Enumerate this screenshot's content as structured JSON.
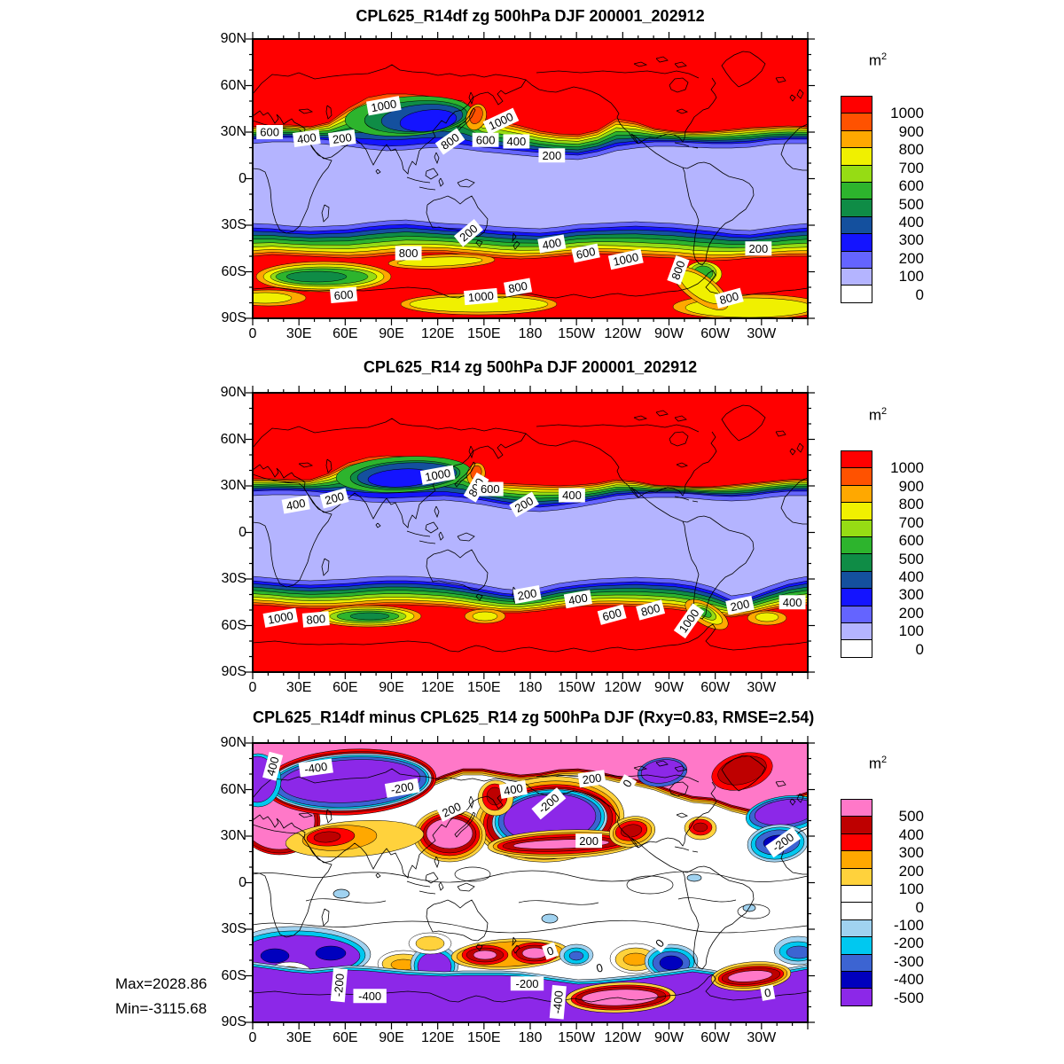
{
  "figure": {
    "background": "#ffffff"
  },
  "axes": {
    "x_tick_labels": [
      "0",
      "30E",
      "60E",
      "90E",
      "120E",
      "150E",
      "180",
      "150W",
      "120W",
      "90W",
      "60W",
      "30W"
    ],
    "y_tick_labels": [
      "90N",
      "60N",
      "30N",
      "0",
      "30S",
      "60S",
      "90S"
    ],
    "major_step_deg": 30,
    "minor_step_deg": 10
  },
  "panels": [
    {
      "title": "CPL625_R14df zg 500hPa DJF 200001_202912",
      "unit": "m",
      "unit_exp": "2",
      "colorbar": {
        "tick_labels": [
          "1000",
          "900",
          "800",
          "700",
          "600",
          "500",
          "400",
          "300",
          "200",
          "100",
          "0"
        ],
        "colors": [
          "#ff0000",
          "#ff5200",
          "#ffa800",
          "#f0f000",
          "#96dc14",
          "#2db42d",
          "#0f8c46",
          "#14509e",
          "#1414ff",
          "#6464ff",
          "#b4b4ff",
          "#ffffff"
        ]
      }
    },
    {
      "title": "CPL625_R14 zg 500hPa DJF 200001_202912",
      "unit": "m",
      "unit_exp": "2",
      "colorbar": {
        "tick_labels": [
          "1000",
          "900",
          "800",
          "700",
          "600",
          "500",
          "400",
          "300",
          "200",
          "100",
          "0"
        ],
        "colors": [
          "#ff0000",
          "#ff5200",
          "#ffa800",
          "#f0f000",
          "#96dc14",
          "#2db42d",
          "#0f8c46",
          "#14509e",
          "#1414ff",
          "#6464ff",
          "#b4b4ff",
          "#ffffff"
        ]
      }
    },
    {
      "title": "CPL625_R14df minus CPL625_R14 zg 500hPa DJF (Rxy=0.83, RMSE=2.54)",
      "unit": "m",
      "unit_exp": "2",
      "colorbar": {
        "tick_labels": [
          "500",
          "400",
          "300",
          "200",
          "100",
          "0",
          "-100",
          "-200",
          "-300",
          "-400",
          "-500"
        ],
        "colors": [
          "#ff78c8",
          "#be0000",
          "#ff0000",
          "#ffa800",
          "#ffd23c",
          "#ffffff",
          "#ffffff",
          "#a0d2f0",
          "#00c8f0",
          "#3c64d2",
          "#0000be",
          "#8c28e8"
        ]
      },
      "stats": {
        "max_label": "Max=2028.86",
        "min_label": "Min=-3115.68"
      }
    }
  ],
  "chart_data": [
    {
      "type": "filled_contour_map",
      "title": "CPL625_R14df zg 500hPa DJF 200001_202912",
      "units": "m²",
      "projection": "equirectangular",
      "lon_range": [
        0,
        360
      ],
      "lat_range": [
        -90,
        90
      ],
      "contour_interval": 100,
      "levels": [
        0,
        100,
        200,
        300,
        400,
        500,
        600,
        700,
        800,
        900,
        1000
      ],
      "field_summary": "High variance (>1000 m²) poleward of ~35N and ~50S; low variance (<200 m²) band across the tropics; minimum blue core over central Asia 100-130E near 40N; secondary green minima in the Southern Ocean near 30-70E around 60S.",
      "labeled_contours": [
        {
          "value": 1000,
          "lon": 85,
          "lat": 47,
          "rot": -10
        },
        {
          "value": 1000,
          "lon": 161,
          "lat": 37,
          "rot": -25
        },
        {
          "value": 800,
          "lon": 128,
          "lat": 24,
          "rot": -35
        },
        {
          "value": 600,
          "lon": 11,
          "lat": 30,
          "rot": 0
        },
        {
          "value": 400,
          "lon": 35,
          "lat": 26,
          "rot": -8
        },
        {
          "value": 200,
          "lon": 58,
          "lat": 26,
          "rot": -8
        },
        {
          "value": 600,
          "lon": 151,
          "lat": 25,
          "rot": 0
        },
        {
          "value": 400,
          "lon": 171,
          "lat": 24,
          "rot": 0
        },
        {
          "value": 200,
          "lon": 194,
          "lat": 15,
          "rot": 0
        },
        {
          "value": 200,
          "lon": 140,
          "lat": -35,
          "rot": -40
        },
        {
          "value": 800,
          "lon": 101,
          "lat": -48,
          "rot": 0
        },
        {
          "value": 400,
          "lon": 194,
          "lat": -42,
          "rot": -10
        },
        {
          "value": 600,
          "lon": 216,
          "lat": -48,
          "rot": -12
        },
        {
          "value": 1000,
          "lon": 242,
          "lat": -52,
          "rot": -12
        },
        {
          "value": 800,
          "lon": 276,
          "lat": -59,
          "rot": -70
        },
        {
          "value": 200,
          "lon": 328,
          "lat": -45,
          "rot": 0
        },
        {
          "value": 800,
          "lon": 172,
          "lat": -70,
          "rot": -10
        },
        {
          "value": 1000,
          "lon": 148,
          "lat": -76,
          "rot": -5
        },
        {
          "value": 600,
          "lon": 59,
          "lat": -75,
          "rot": -5
        },
        {
          "value": 800,
          "lon": 309,
          "lat": -77,
          "rot": -15
        }
      ]
    },
    {
      "type": "filled_contour_map",
      "title": "CPL625_R14 zg 500hPa DJF 200001_202912",
      "units": "m²",
      "projection": "equirectangular",
      "lon_range": [
        0,
        360
      ],
      "lat_range": [
        -90,
        90
      ],
      "contour_interval": 100,
      "levels": [
        0,
        100,
        200,
        300,
        400,
        500,
        600,
        700,
        800,
        900,
        1000
      ],
      "field_summary": "High variance (>1000 m²) poleward of ~30N and ~48S including all of Antarctica; deep navy/blue minimum over Asia 60-140E near 30-45N; tropical band below 100 m²; green minima in Southern Ocean near 60-90E around 55S and near the Drake Passage.",
      "labeled_contours": [
        {
          "value": 1000,
          "lon": 120,
          "lat": 37,
          "rot": -10
        },
        {
          "value": 800,
          "lon": 145,
          "lat": 29,
          "rot": -60
        },
        {
          "value": 200,
          "lon": 53,
          "lat": 22,
          "rot": -15
        },
        {
          "value": 400,
          "lon": 28,
          "lat": 18,
          "rot": -10
        },
        {
          "value": 600,
          "lon": 154,
          "lat": 28,
          "rot": 0
        },
        {
          "value": 200,
          "lon": 176,
          "lat": 18,
          "rot": -30
        },
        {
          "value": 400,
          "lon": 207,
          "lat": 24,
          "rot": 0
        },
        {
          "value": 200,
          "lon": 178,
          "lat": -40,
          "rot": -10
        },
        {
          "value": 400,
          "lon": 211,
          "lat": -43,
          "rot": -10
        },
        {
          "value": 600,
          "lon": 233,
          "lat": -53,
          "rot": -15
        },
        {
          "value": 800,
          "lon": 258,
          "lat": -50,
          "rot": -15
        },
        {
          "value": 1000,
          "lon": 283,
          "lat": -57,
          "rot": -55
        },
        {
          "value": 200,
          "lon": 316,
          "lat": -47,
          "rot": -12
        },
        {
          "value": 400,
          "lon": 350,
          "lat": -45,
          "rot": 0
        },
        {
          "value": 1000,
          "lon": 18,
          "lat": -55,
          "rot": -10
        },
        {
          "value": 800,
          "lon": 41,
          "lat": -56,
          "rot": -5
        }
      ]
    },
    {
      "type": "filled_contour_map",
      "title": "CPL625_R14df minus CPL625_R14 zg 500hPa DJF (Rxy=0.83, RMSE=2.54)",
      "units": "m²",
      "projection": "equirectangular",
      "lon_range": [
        0,
        360
      ],
      "lat_range": [
        -90,
        90
      ],
      "contour_interval": 100,
      "levels": [
        -500,
        -400,
        -300,
        -200,
        -100,
        0,
        100,
        200,
        300,
        400,
        500
      ],
      "stats": {
        "rxy": 0.83,
        "rmse": 2.54,
        "max": 2028.86,
        "min": -3115.68
      },
      "field_summary": "Difference field: strong positive (>500 m², pink) over the Arctic cap and North Atlantic; strong negative (<-500 m², violet) centers over Scandinavia/Russia and the North Pacific near 60N and over the Antarctic cap south of ~60S; alternating positive/negative anomalies along 45-60S; near-zero (white) across the tropics.",
      "labeled_contours": [
        {
          "value": 400,
          "lon": 13,
          "lat": 75,
          "rot": -75
        },
        {
          "value": -400,
          "lon": 41,
          "lat": 74,
          "rot": -8
        },
        {
          "value": -200,
          "lon": 97,
          "lat": 61,
          "rot": -10
        },
        {
          "value": 200,
          "lon": 129,
          "lat": 47,
          "rot": -25
        },
        {
          "value": 400,
          "lon": 169,
          "lat": 60,
          "rot": -10
        },
        {
          "value": -200,
          "lon": 192,
          "lat": 51,
          "rot": -40
        },
        {
          "value": 200,
          "lon": 220,
          "lat": 67,
          "rot": -8
        },
        {
          "value": 0,
          "lon": 243,
          "lat": 64,
          "rot": -60
        },
        {
          "value": 200,
          "lon": 218,
          "lat": 27,
          "rot": 0
        },
        {
          "value": -200,
          "lon": 344,
          "lat": 26,
          "rot": -35
        },
        {
          "value": -200,
          "lon": 56,
          "lat": -66,
          "rot": -85
        },
        {
          "value": -400,
          "lon": 76,
          "lat": -73,
          "rot": 0
        },
        {
          "value": 0,
          "lon": 193,
          "lat": -44,
          "rot": -20
        },
        {
          "value": -200,
          "lon": 178,
          "lat": -65,
          "rot": 0
        },
        {
          "value": -400,
          "lon": 198,
          "lat": -77,
          "rot": -85
        },
        {
          "value": 0,
          "lon": 225,
          "lat": -55,
          "rot": -15
        },
        {
          "value": 0,
          "lon": 264,
          "lat": -39,
          "rot": -50
        },
        {
          "value": 0,
          "lon": 334,
          "lat": -71,
          "rot": -10
        }
      ]
    }
  ]
}
